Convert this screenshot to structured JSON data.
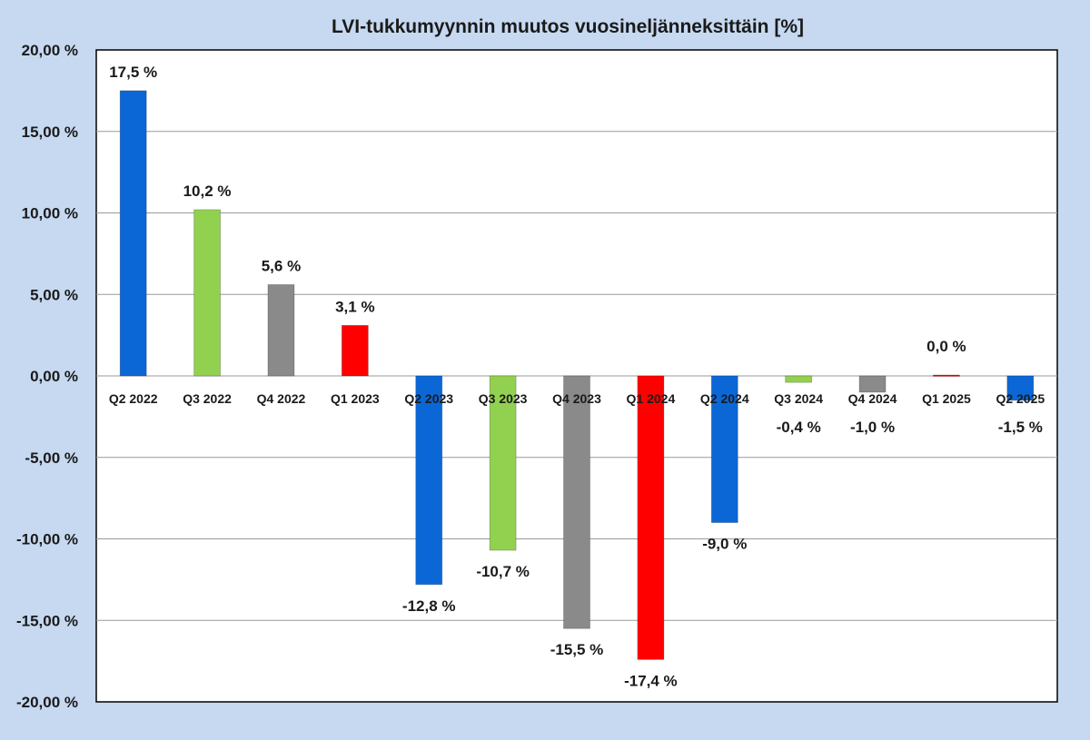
{
  "colors": {
    "background": "#c6d9f1",
    "plot_background": "#ffffff",
    "gridline": "#9a9a9a",
    "blue": "#0b67d6",
    "green": "#92d050",
    "gray": "#8a8a8a",
    "red": "#ff0000"
  },
  "chart_data": {
    "type": "bar",
    "title": "LVI-tukkumyynnin muutos vuosineljänneksittäin [%]",
    "xlabel": "",
    "ylabel": "",
    "ylim": [
      -20,
      20
    ],
    "yticks": [
      20,
      15,
      10,
      5,
      0,
      -5,
      -10,
      -15,
      -20
    ],
    "ytick_labels": [
      "20,00 %",
      "15,00 %",
      "10,00 %",
      "5,00 %",
      "0,00 %",
      "-5,00 %",
      "-10,00 %",
      "-15,00 %",
      "-20,00 %"
    ],
    "grid": true,
    "legend": "none",
    "categories": [
      "Q2 2022",
      "Q3 2022",
      "Q4 2022",
      "Q1 2023",
      "Q2 2023",
      "Q3 2023",
      "Q4 2023",
      "Q1 2024",
      "Q2 2024",
      "Q3 2024",
      "Q4 2024",
      "Q1 2025",
      "Q2 2025"
    ],
    "values": [
      17.5,
      10.2,
      5.6,
      3.1,
      -12.8,
      -10.7,
      -15.5,
      -17.4,
      -9.0,
      -0.4,
      -1.0,
      0.0,
      -1.5
    ],
    "data_labels": [
      "17,5 %",
      "10,2 %",
      "5,6 %",
      "3,1 %",
      "-12,8 %",
      "-10,7 %",
      "-15,5 %",
      "-17,4 %",
      "-9,0 %",
      "-0,4 %",
      "-1,0 %",
      "0,0 %",
      "-1,5 %"
    ],
    "bar_colors": [
      "blue",
      "green",
      "gray",
      "red",
      "blue",
      "green",
      "gray",
      "red",
      "blue",
      "green",
      "gray",
      "red",
      "blue"
    ]
  }
}
